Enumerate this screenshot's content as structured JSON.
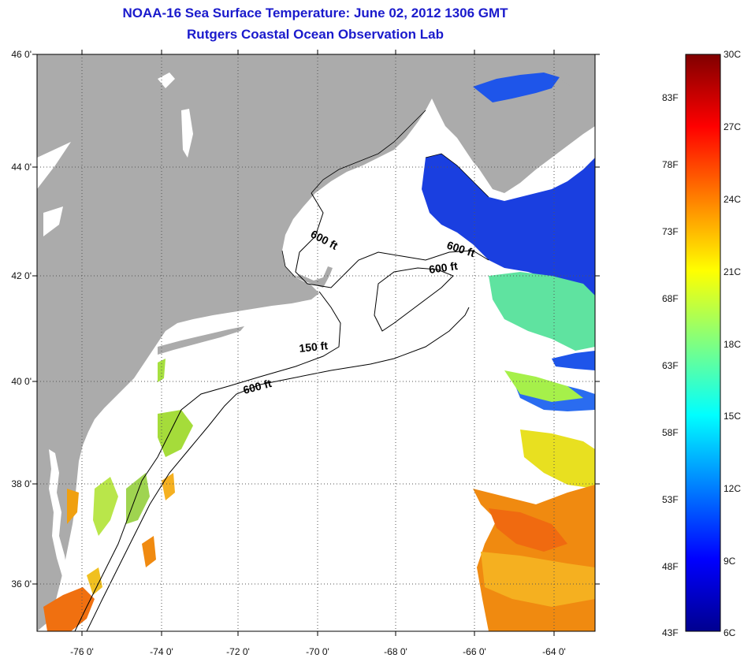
{
  "header": {
    "title": "NOAA-16 Sea Surface Temperature:  June 02, 2012 1306 GMT",
    "subtitle": "Rutgers Coastal Ocean Observation Lab"
  },
  "map": {
    "latitude_ticks": [
      "46 0'",
      "44 0'",
      "42 0'",
      "40 0'",
      "38 0'",
      "36 0'"
    ],
    "longitude_ticks": [
      "-76 0'",
      "-74 0'",
      "-72 0'",
      "-70 0'",
      "-68 0'",
      "-66 0'",
      "-64 0'"
    ],
    "lon_range": [
      -77,
      -63
    ],
    "lat_range": [
      35,
      46
    ],
    "contour_labels": [
      "600 ft",
      "600 ft",
      "600 ft",
      "150 ft",
      "600 ft"
    ],
    "colors": {
      "land": "#ababab",
      "cloud": "#ffffff",
      "grid": "#555555"
    }
  },
  "colorbar": {
    "fahrenheit_labels": [
      "83F",
      "78F",
      "73F",
      "68F",
      "63F",
      "58F",
      "53F",
      "48F",
      "43F"
    ],
    "celsius_labels": [
      "30C",
      "27C",
      "24C",
      "21C",
      "18C",
      "15C",
      "12C",
      "9C",
      "6C"
    ],
    "range_celsius": [
      6,
      30
    ]
  }
}
